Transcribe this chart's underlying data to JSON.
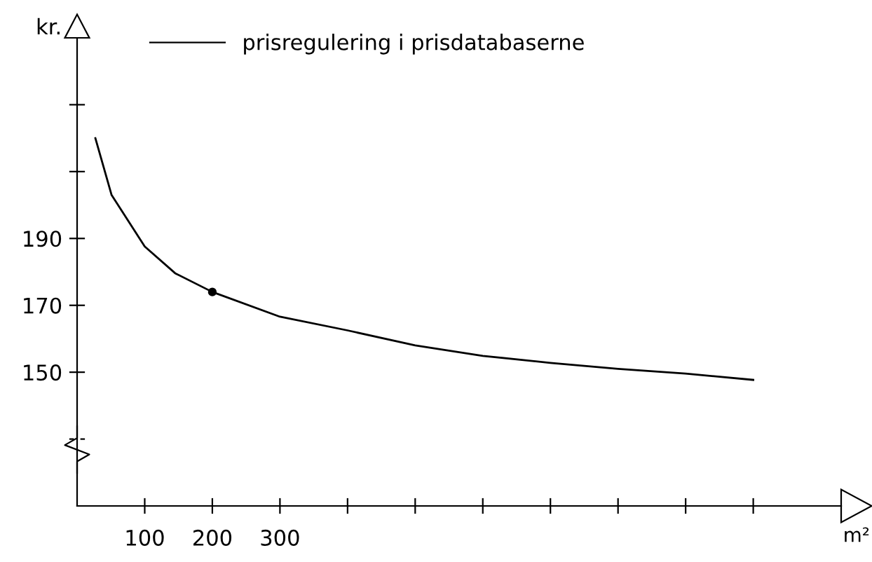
{
  "chart_data": {
    "type": "line",
    "xlabel": "m²",
    "ylabel": "kr.",
    "xlim": [
      0,
      1130
    ],
    "ylim": [
      110,
      250
    ],
    "xticks": [
      100,
      200,
      300,
      {
        "value": 400,
        "label": null
      },
      {
        "value": 500,
        "label": null
      },
      {
        "value": 600,
        "label": null
      },
      {
        "value": 700,
        "label": null
      },
      {
        "value": 800,
        "label": null
      },
      {
        "value": 900,
        "label": null
      },
      {
        "value": 1000,
        "label": null
      }
    ],
    "yticks": [
      {
        "value": 130,
        "label": null
      },
      150,
      170,
      190,
      {
        "value": 210,
        "label": null
      },
      {
        "value": 230,
        "label": null
      }
    ],
    "series": [
      {
        "name": "prisregulering i prisdatabaserne",
        "color": "#000000",
        "x": [
          27,
          51,
          100,
          145,
          200,
          300,
          400,
          500,
          600,
          700,
          800,
          900,
          1000
        ],
        "values": [
          220,
          203,
          187.6,
          179.6,
          174,
          166.6,
          162.5,
          158,
          154.9,
          152.8,
          151,
          149.6,
          147.7
        ]
      },
      {
        "type": "scatter",
        "color": "#000000",
        "x": [
          200
        ],
        "values": [
          174
        ],
        "marker": "circle"
      }
    ],
    "legend": "top",
    "grid": false
  }
}
